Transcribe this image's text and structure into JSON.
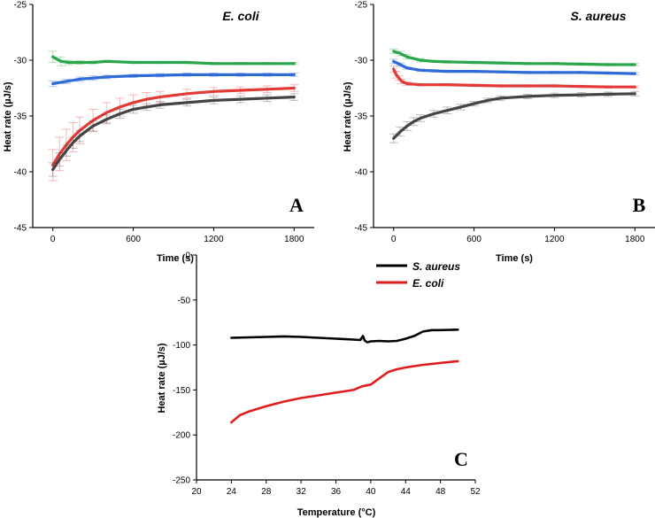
{
  "chart_data": [
    {
      "id": "A",
      "type": "line",
      "title": "E. coli",
      "panel_letter": "A",
      "xlabel": "Time (s)",
      "ylabel": "Heat rate (µJ/s)",
      "xlim": [
        -150,
        1950
      ],
      "ylim": [
        -45,
        -25
      ],
      "xticks": [
        0,
        600,
        1200,
        1800
      ],
      "yticks": [
        -45,
        -40,
        -35,
        -30,
        -25
      ],
      "error_bars": true,
      "series": [
        {
          "name": "green",
          "color": "#2aa64a",
          "x": [
            0,
            60,
            120,
            200,
            300,
            400,
            600,
            800,
            1000,
            1200,
            1400,
            1600,
            1800
          ],
          "y": [
            -29.7,
            -30.1,
            -30.2,
            -30.2,
            -30.2,
            -30.1,
            -30.2,
            -30.2,
            -30.2,
            -30.3,
            -30.3,
            -30.3,
            -30.3
          ],
          "err": [
            0.5,
            0.4,
            0.2,
            0.15,
            0.12,
            0.1,
            0.1,
            0.1,
            0.1,
            0.1,
            0.1,
            0.1,
            0.1
          ]
        },
        {
          "name": "blue",
          "color": "#2f6bd8",
          "x": [
            0,
            100,
            200,
            300,
            400,
            600,
            800,
            1000,
            1200,
            1400,
            1600,
            1800
          ],
          "y": [
            -32.1,
            -31.9,
            -31.7,
            -31.6,
            -31.5,
            -31.4,
            -31.35,
            -31.3,
            -31.3,
            -31.3,
            -31.3,
            -31.3
          ],
          "err": [
            0.25,
            0.2,
            0.2,
            0.2,
            0.15,
            0.15,
            0.15,
            0.15,
            0.15,
            0.15,
            0.15,
            0.15
          ]
        },
        {
          "name": "red",
          "color": "#e23a36",
          "x": [
            0,
            50,
            100,
            150,
            200,
            300,
            400,
            500,
            600,
            700,
            800,
            1000,
            1200,
            1400,
            1600,
            1800
          ],
          "y": [
            -39.4,
            -38.4,
            -37.6,
            -36.9,
            -36.3,
            -35.4,
            -34.7,
            -34.2,
            -33.8,
            -33.5,
            -33.3,
            -33.0,
            -32.8,
            -32.7,
            -32.6,
            -32.5
          ],
          "err": [
            1.4,
            1.5,
            1.4,
            1.3,
            1.2,
            1.0,
            0.9,
            0.8,
            0.7,
            0.6,
            0.5,
            0.4,
            0.35,
            0.3,
            0.3,
            0.3
          ]
        },
        {
          "name": "dark gray",
          "color": "#444444",
          "x": [
            0,
            50,
            100,
            150,
            200,
            300,
            400,
            500,
            600,
            700,
            800,
            1000,
            1200,
            1400,
            1600,
            1800
          ],
          "y": [
            -39.8,
            -38.9,
            -38.1,
            -37.4,
            -36.8,
            -35.9,
            -35.3,
            -34.8,
            -34.4,
            -34.2,
            -34.0,
            -33.8,
            -33.6,
            -33.5,
            -33.4,
            -33.3
          ],
          "err": [
            0.6,
            0.6,
            0.5,
            0.5,
            0.5,
            0.45,
            0.4,
            0.4,
            0.35,
            0.3,
            0.3,
            0.3,
            0.3,
            0.3,
            0.3,
            0.3
          ]
        }
      ]
    },
    {
      "id": "B",
      "type": "line",
      "title": "S. aureus",
      "panel_letter": "B",
      "xlabel": "Time (s)",
      "ylabel": "Heat rate (µJ/s)",
      "xlim": [
        -150,
        1950
      ],
      "ylim": [
        -45,
        -25
      ],
      "xticks": [
        0,
        600,
        1200,
        1800
      ],
      "yticks": [
        -45,
        -40,
        -35,
        -30,
        -25
      ],
      "error_bars": true,
      "series": [
        {
          "name": "green",
          "color": "#2aa64a",
          "x": [
            0,
            50,
            100,
            200,
            300,
            400,
            600,
            800,
            1000,
            1200,
            1400,
            1600,
            1800
          ],
          "y": [
            -29.2,
            -29.4,
            -29.7,
            -30.0,
            -30.1,
            -30.15,
            -30.2,
            -30.25,
            -30.3,
            -30.3,
            -30.35,
            -30.4,
            -30.4
          ],
          "err": [
            0.2,
            0.2,
            0.2,
            0.15,
            0.1,
            0.1,
            0.1,
            0.1,
            0.1,
            0.1,
            0.1,
            0.1,
            0.1
          ]
        },
        {
          "name": "blue",
          "color": "#2f6bd8",
          "x": [
            0,
            50,
            100,
            200,
            300,
            400,
            600,
            800,
            1000,
            1200,
            1400,
            1600,
            1800
          ],
          "y": [
            -30.1,
            -30.4,
            -30.7,
            -30.9,
            -30.95,
            -31.0,
            -31.0,
            -31.05,
            -31.1,
            -31.1,
            -31.1,
            -31.15,
            -31.2
          ],
          "err": [
            0.2,
            0.15,
            0.1,
            0.1,
            0.1,
            0.1,
            0.1,
            0.1,
            0.1,
            0.1,
            0.1,
            0.1,
            0.1
          ]
        },
        {
          "name": "red",
          "color": "#e23a36",
          "x": [
            0,
            20,
            40,
            60,
            100,
            200,
            400,
            600,
            800,
            1000,
            1200,
            1400,
            1600,
            1800
          ],
          "y": [
            -30.8,
            -31.3,
            -31.6,
            -31.9,
            -32.1,
            -32.2,
            -32.2,
            -32.25,
            -32.3,
            -32.3,
            -32.3,
            -32.35,
            -32.4,
            -32.4
          ],
          "err": [
            0.3,
            0.3,
            0.2,
            0.2,
            0.15,
            0.1,
            0.1,
            0.1,
            0.1,
            0.1,
            0.1,
            0.1,
            0.1,
            0.1
          ]
        },
        {
          "name": "dark gray",
          "color": "#444444",
          "x": [
            0,
            50,
            100,
            150,
            200,
            300,
            400,
            500,
            600,
            700,
            800,
            1000,
            1200,
            1400,
            1600,
            1800
          ],
          "y": [
            -37.0,
            -36.4,
            -35.9,
            -35.5,
            -35.2,
            -34.8,
            -34.5,
            -34.2,
            -33.9,
            -33.6,
            -33.4,
            -33.25,
            -33.15,
            -33.1,
            -33.05,
            -33.0
          ],
          "err": [
            0.4,
            0.4,
            0.4,
            0.35,
            0.3,
            0.3,
            0.3,
            0.25,
            0.2,
            0.2,
            0.2,
            0.2,
            0.2,
            0.2,
            0.2,
            0.2
          ]
        }
      ]
    },
    {
      "id": "C",
      "type": "line",
      "title": "",
      "panel_letter": "C",
      "xlabel": "Temperature (°C)",
      "ylabel": "Heat rate (µJ/s)",
      "xlim": [
        20,
        52
      ],
      "ylim": [
        -250,
        0
      ],
      "xticks": [
        20,
        24,
        28,
        32,
        36,
        40,
        44,
        48,
        52
      ],
      "yticks": [
        -250,
        -200,
        -150,
        -100,
        -50,
        0
      ],
      "legend_position": "top",
      "series": [
        {
          "name": "S. aureus",
          "color": "#000000",
          "x": [
            24,
            26,
            28,
            30,
            32,
            34,
            36,
            38,
            38.8,
            39.1,
            39.3,
            39.6,
            40,
            41,
            42,
            43,
            44,
            45,
            46,
            47,
            48,
            50
          ],
          "y": [
            -92,
            -91.5,
            -91,
            -90.5,
            -91,
            -92,
            -93,
            -94,
            -94.5,
            -90,
            -95,
            -97,
            -96,
            -95.5,
            -96,
            -95.5,
            -93,
            -90,
            -85,
            -83.5,
            -83.5,
            -83
          ]
        },
        {
          "name": "E. coli",
          "color": "#e01d1d",
          "x": [
            24,
            25,
            26,
            28,
            30,
            32,
            34,
            36,
            38,
            39,
            40,
            41,
            42,
            43,
            44,
            46,
            48,
            50
          ],
          "y": [
            -186,
            -178,
            -174,
            -168,
            -163,
            -159,
            -156,
            -153,
            -150,
            -146,
            -144,
            -137,
            -130,
            -127,
            -125,
            -122,
            -120,
            -118
          ]
        }
      ]
    }
  ]
}
